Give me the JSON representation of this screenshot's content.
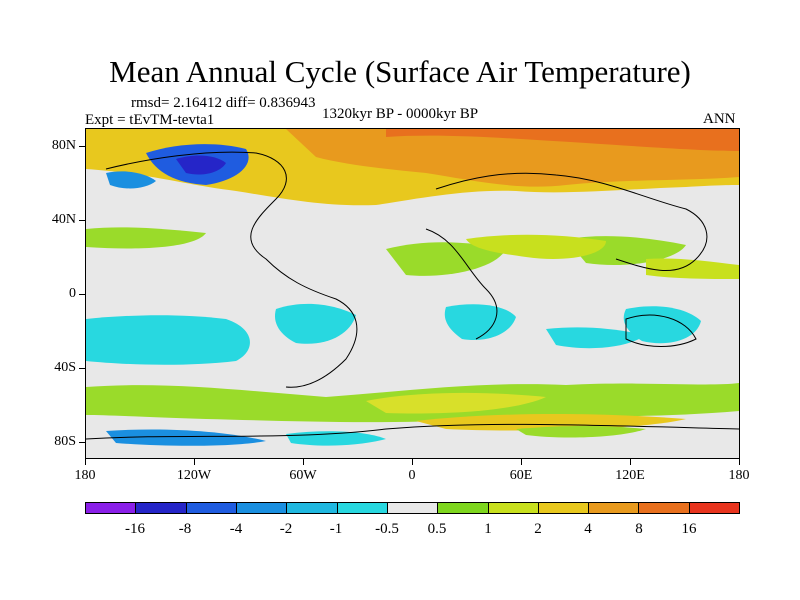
{
  "title": "Mean Annual Cycle (Surface Air Temperature)",
  "stats_line": "rmsd= 2.16412 diff= 0.836943",
  "experiment": "Expt = tEvTM-tevta1",
  "period": "1320kyr BP - 0000kyr BP",
  "season": "ANN",
  "map": {
    "y_labels": [
      "80N",
      "40N",
      "0",
      "40S",
      "80S"
    ],
    "x_labels": [
      "180",
      "120W",
      "60W",
      "0",
      "60E",
      "120E",
      "180"
    ],
    "land_color": "#e8e8e8"
  },
  "colorbar": {
    "labels": [
      "-16",
      "-8",
      "-4",
      "-2",
      "-1",
      "-0.5",
      "0.5",
      "1",
      "2",
      "4",
      "8",
      "16"
    ],
    "colors": [
      "#8a1fe8",
      "#2525c8",
      "#1f5ce0",
      "#1a8fe0",
      "#20b8e0",
      "#28d8e0",
      "#e8e8e8",
      "#7ed61e",
      "#c8e01e",
      "#e8c81e",
      "#e89a1e",
      "#e8701e",
      "#e8341e"
    ]
  }
}
